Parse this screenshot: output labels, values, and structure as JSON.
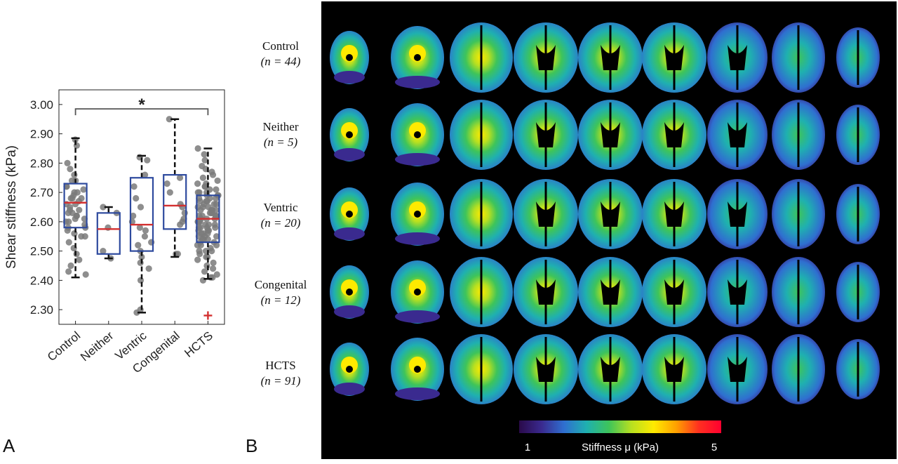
{
  "panel_labels": {
    "a": "A",
    "b": "B"
  },
  "chart_data": [
    {
      "type": "box",
      "ylabel": "Shear stiffness (kPa)",
      "xlabel": "",
      "ylim": [
        2.25,
        3.05
      ],
      "yticks": [
        "2.30",
        "2.40",
        "2.50",
        "2.60",
        "2.70",
        "2.80",
        "2.90",
        "3.00"
      ],
      "ytick_values": [
        2.3,
        2.4,
        2.5,
        2.6,
        2.7,
        2.8,
        2.9,
        3.0
      ],
      "categories": [
        "Control",
        "Neither",
        "Ventric",
        "Congenital",
        "HCTS"
      ],
      "boxes": [
        {
          "name": "Control",
          "q1": 2.58,
          "median": 2.665,
          "q3": 2.73,
          "whisker_low": 2.41,
          "whisker_high": 2.885,
          "outliers": []
        },
        {
          "name": "Neither",
          "q1": 2.49,
          "median": 2.575,
          "q3": 2.63,
          "whisker_low": 2.475,
          "whisker_high": 2.65,
          "outliers": []
        },
        {
          "name": "Ventric",
          "q1": 2.5,
          "median": 2.59,
          "q3": 2.75,
          "whisker_low": 2.29,
          "whisker_high": 2.825,
          "outliers": []
        },
        {
          "name": "Congenital",
          "q1": 2.575,
          "median": 2.655,
          "q3": 2.76,
          "whisker_low": 2.48,
          "whisker_high": 2.95,
          "outliers": []
        },
        {
          "name": "HCTS",
          "q1": 2.53,
          "median": 2.61,
          "q3": 2.69,
          "whisker_low": 2.405,
          "whisker_high": 2.85,
          "outliers": [
            2.28
          ]
        }
      ],
      "points": [
        [
          2.88,
          2.86,
          2.8,
          2.78,
          2.76,
          2.74,
          2.72,
          2.71,
          2.7,
          2.69,
          2.68,
          2.68,
          2.67,
          2.66,
          2.66,
          2.65,
          2.64,
          2.63,
          2.62,
          2.61,
          2.6,
          2.6,
          2.59,
          2.58,
          2.57,
          2.56,
          2.55,
          2.53,
          2.51,
          2.49,
          2.47,
          2.45,
          2.43,
          2.42,
          2.7,
          2.64,
          2.62,
          2.74,
          2.58,
          2.55,
          2.68,
          2.63,
          2.72,
          2.61
        ],
        [
          2.65,
          2.63,
          2.58,
          2.5,
          2.475
        ],
        [
          2.82,
          2.81,
          2.76,
          2.72,
          2.68,
          2.65,
          2.62,
          2.6,
          2.58,
          2.57,
          2.55,
          2.53,
          2.52,
          2.5,
          2.48,
          2.46,
          2.44,
          2.4,
          2.3,
          2.29
        ],
        [
          2.95,
          2.75,
          2.73,
          2.7,
          2.66,
          2.65,
          2.63,
          2.61,
          2.6,
          2.59,
          2.49,
          2.49
        ],
        [
          2.85,
          2.83,
          2.81,
          2.79,
          2.78,
          2.77,
          2.76,
          2.75,
          2.74,
          2.73,
          2.72,
          2.71,
          2.7,
          2.7,
          2.69,
          2.69,
          2.68,
          2.68,
          2.67,
          2.67,
          2.66,
          2.66,
          2.65,
          2.65,
          2.64,
          2.64,
          2.63,
          2.63,
          2.62,
          2.62,
          2.61,
          2.61,
          2.6,
          2.6,
          2.6,
          2.59,
          2.59,
          2.58,
          2.58,
          2.57,
          2.57,
          2.56,
          2.56,
          2.55,
          2.55,
          2.54,
          2.54,
          2.53,
          2.53,
          2.52,
          2.52,
          2.51,
          2.5,
          2.5,
          2.49,
          2.48,
          2.48,
          2.47,
          2.46,
          2.45,
          2.44,
          2.43,
          2.42,
          2.41,
          2.41,
          2.4,
          2.72,
          2.68,
          2.64,
          2.62,
          2.58,
          2.56,
          2.66,
          2.7,
          2.63,
          2.61,
          2.59,
          2.57,
          2.55,
          2.65,
          2.67,
          2.6,
          2.62,
          2.64,
          2.54,
          2.52,
          2.5,
          2.58,
          2.69,
          2.71,
          2.73
        ]
      ],
      "significance": {
        "from": "Control",
        "to": "HCTS",
        "y": 2.985,
        "label": "*"
      },
      "colors": {
        "box": "#2e4a9e",
        "median": "#d32f2f",
        "points": "#7a7a7a",
        "whisker": "#111111",
        "bracket": "#555555",
        "outlier": "#d32f2f"
      }
    },
    {
      "type": "heatmap",
      "rows": [
        {
          "group": "Control",
          "n": "(n = 44)"
        },
        {
          "group": "Neither",
          "n": "(n = 5)"
        },
        {
          "group": "Ventric",
          "n": "(n = 20)"
        },
        {
          "group": "Congenital",
          "n": "(n = 12)"
        },
        {
          "group": "HCTS",
          "n": "(n = 91)"
        }
      ],
      "slices_per_row": 9,
      "colorbar": {
        "label": "Stiffness μ (kPa)",
        "min_label": "1",
        "max_label": "5",
        "range": [
          1,
          5
        ],
        "stops": [
          "#2a0a4a",
          "#3a2a8f",
          "#2f6fd0",
          "#1fb0b0",
          "#3ec45a",
          "#b8e020",
          "#ffea00",
          "#ffa000",
          "#ff3020",
          "#ff0030"
        ]
      }
    }
  ]
}
